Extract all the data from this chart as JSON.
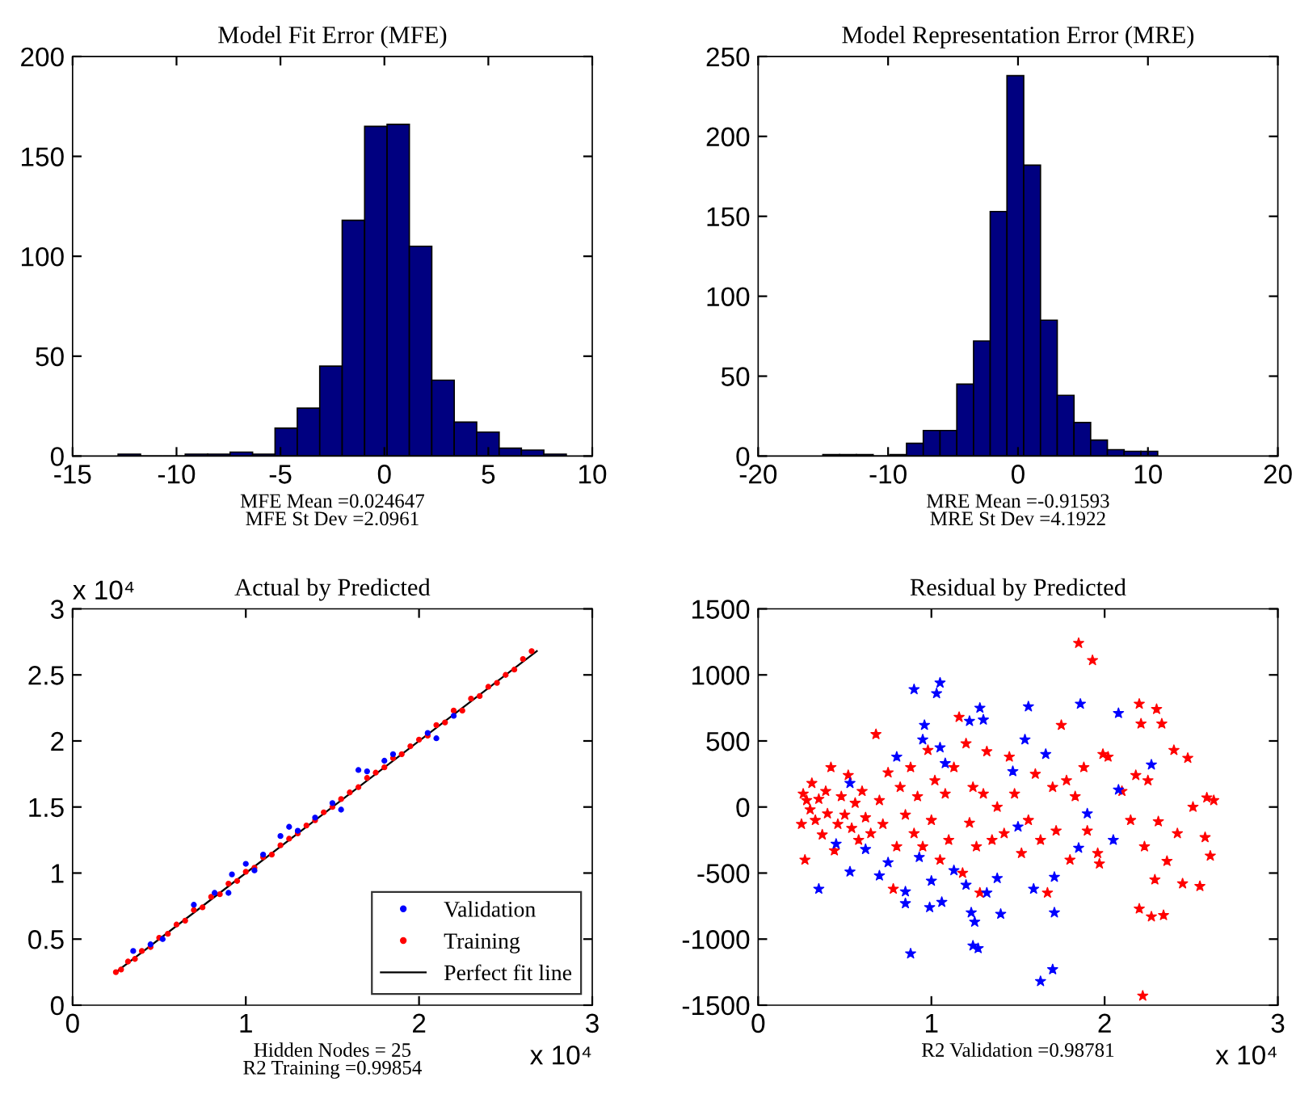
{
  "chart_data": [
    {
      "type": "histogram",
      "title": "Model Fit Error (MFE)",
      "xlabel": "MFE Mean =0.024647\nMFE St Dev =2.0961",
      "bins": [
        -12.81,
        -11.73,
        -10.65,
        -9.58,
        -8.5,
        -7.42,
        -6.34,
        -5.26,
        -4.19,
        -3.11,
        -2.03,
        -0.95,
        0.13,
        1.2,
        2.28,
        3.36,
        4.44,
        5.52,
        6.59,
        7.67,
        8.75
      ],
      "values": [
        1,
        0,
        0,
        1,
        1,
        2,
        1,
        14,
        24,
        45,
        118,
        165,
        166,
        105,
        38,
        17,
        12,
        4,
        3,
        1
      ],
      "color": "#000080",
      "xlim": [
        -15,
        10
      ],
      "xticks": [
        -15,
        -10,
        -5,
        0,
        5,
        10
      ],
      "ylim": [
        0,
        200
      ],
      "yticks": [
        0,
        50,
        100,
        150,
        200
      ],
      "grid": false
    },
    {
      "type": "histogram",
      "title": "Model Representation Error (MRE)",
      "xlabel": "MRE Mean =-0.91593\nMRE St Dev =4.1922",
      "bins": [
        -15.02,
        -13.73,
        -12.44,
        -11.15,
        -9.87,
        -8.58,
        -7.29,
        -6.0,
        -4.71,
        -3.42,
        -2.14,
        -0.85,
        0.44,
        1.73,
        3.02,
        4.31,
        5.59,
        6.88,
        8.17,
        9.46,
        10.75
      ],
      "values": [
        1,
        1,
        1,
        0,
        1,
        8,
        16,
        16,
        45,
        72,
        153,
        238,
        182,
        85,
        38,
        21,
        10,
        4,
        3,
        3
      ],
      "color": "#000080",
      "xlim": [
        -20,
        20
      ],
      "xticks": [
        -20,
        -10,
        0,
        10,
        20
      ],
      "ylim": [
        0,
        250
      ],
      "yticks": [
        0,
        50,
        100,
        150,
        200,
        250
      ],
      "grid": false
    },
    {
      "type": "scatter",
      "title": "Actual by Predicted",
      "xlabel": "Hidden Nodes = 25\nR2 Training =0.99854",
      "annotations": [
        "x 10⁴",
        "x 10⁴"
      ],
      "marker": "circle",
      "legend": "bottom right",
      "grid": false,
      "xlim": [
        0,
        3
      ],
      "xticks": [
        0,
        1,
        2,
        3
      ],
      "ylim": [
        0,
        3
      ],
      "yticks": [
        0,
        0.5,
        1,
        1.5,
        2,
        2.5,
        3
      ],
      "series": [
        {
          "name": "Validation",
          "color": "#0000ff",
          "x": [
            0.35,
            0.45,
            0.52,
            0.7,
            0.82,
            0.9,
            0.92,
            1.0,
            1.05,
            1.1,
            1.2,
            1.25,
            1.3,
            1.4,
            1.5,
            1.55,
            1.65,
            1.7,
            1.8,
            1.85,
            2.05,
            2.1,
            2.2
          ],
          "values": [
            0.41,
            0.46,
            0.5,
            0.76,
            0.85,
            0.85,
            0.99,
            1.07,
            1.02,
            1.14,
            1.28,
            1.35,
            1.32,
            1.42,
            1.53,
            1.48,
            1.78,
            1.77,
            1.85,
            1.9,
            2.06,
            2.02,
            2.19
          ]
        },
        {
          "name": "Training",
          "color": "#ff0000",
          "x": [
            0.25,
            0.28,
            0.32,
            0.36,
            0.4,
            0.45,
            0.5,
            0.55,
            0.6,
            0.65,
            0.7,
            0.75,
            0.8,
            0.85,
            0.9,
            0.95,
            1.0,
            1.05,
            1.1,
            1.15,
            1.2,
            1.25,
            1.3,
            1.35,
            1.4,
            1.45,
            1.5,
            1.55,
            1.6,
            1.65,
            1.7,
            1.75,
            1.8,
            1.85,
            1.9,
            1.95,
            2.0,
            2.05,
            2.1,
            2.15,
            2.2,
            2.25,
            2.3,
            2.35,
            2.4,
            2.45,
            2.5,
            2.55,
            2.6,
            2.65
          ],
          "values": [
            0.25,
            0.27,
            0.33,
            0.35,
            0.41,
            0.44,
            0.51,
            0.54,
            0.61,
            0.64,
            0.72,
            0.74,
            0.82,
            0.84,
            0.92,
            0.94,
            1.01,
            1.04,
            1.12,
            1.14,
            1.21,
            1.26,
            1.3,
            1.36,
            1.4,
            1.46,
            1.5,
            1.56,
            1.61,
            1.65,
            1.72,
            1.76,
            1.8,
            1.87,
            1.9,
            1.96,
            2.01,
            2.04,
            2.12,
            2.14,
            2.23,
            2.23,
            2.32,
            2.34,
            2.41,
            2.44,
            2.5,
            2.54,
            2.62,
            2.68
          ]
        },
        {
          "name": "Perfect fit line",
          "type": "line",
          "color": "#000000",
          "marker": "none",
          "line_style": "solid",
          "x": [
            0.25,
            2.68
          ],
          "values": [
            0.25,
            2.68
          ]
        }
      ]
    },
    {
      "type": "scatter",
      "title": "Residual by Predicted",
      "xlabel": "R2 Validation =0.98781",
      "annotations": [
        "x 10⁴"
      ],
      "marker": "star",
      "grid": false,
      "xlim": [
        0,
        3
      ],
      "xticks": [
        0,
        1,
        2,
        3
      ],
      "ylim": [
        -1500,
        1500
      ],
      "yticks": [
        -1500,
        -1000,
        -500,
        0,
        500,
        1000,
        1500
      ],
      "series": [
        {
          "color": "#0000ff",
          "x": [
            0.35,
            0.45,
            0.53,
            0.53,
            0.62,
            0.7,
            0.75,
            0.8,
            0.85,
            0.85,
            0.88,
            0.9,
            0.93,
            0.95,
            0.96,
            0.99,
            1.0,
            1.03,
            1.05,
            1.05,
            1.06,
            1.08,
            1.13,
            1.2,
            1.22,
            1.23,
            1.24,
            1.25,
            1.27,
            1.28,
            1.3,
            1.32,
            1.38,
            1.4,
            1.47,
            1.5,
            1.54,
            1.56,
            1.59,
            1.63,
            1.66,
            1.7,
            1.71,
            1.71,
            1.85,
            1.86,
            1.9,
            2.05,
            2.08,
            2.08,
            2.27
          ],
          "values": [
            -620,
            -280,
            -490,
            180,
            -320,
            -520,
            -420,
            380,
            -640,
            -730,
            -1110,
            890,
            -380,
            510,
            620,
            -760,
            -560,
            860,
            940,
            450,
            -720,
            330,
            -480,
            -590,
            650,
            -800,
            -1050,
            -870,
            -1070,
            750,
            660,
            -650,
            -540,
            -810,
            270,
            -150,
            510,
            760,
            -620,
            -1320,
            400,
            -1230,
            -530,
            -800,
            -310,
            780,
            -50,
            -250,
            710,
            130,
            320
          ]
        },
        {
          "color": "#ff0000",
          "x": [
            0.25,
            0.26,
            0.27,
            0.28,
            0.3,
            0.31,
            0.33,
            0.35,
            0.37,
            0.39,
            0.4,
            0.42,
            0.44,
            0.46,
            0.48,
            0.5,
            0.52,
            0.54,
            0.56,
            0.58,
            0.6,
            0.62,
            0.65,
            0.68,
            0.7,
            0.72,
            0.75,
            0.78,
            0.8,
            0.82,
            0.85,
            0.88,
            0.9,
            0.92,
            0.95,
            0.98,
            1.0,
            1.02,
            1.05,
            1.08,
            1.1,
            1.13,
            1.16,
            1.18,
            1.2,
            1.22,
            1.24,
            1.26,
            1.28,
            1.3,
            1.32,
            1.35,
            1.38,
            1.42,
            1.45,
            1.48,
            1.52,
            1.56,
            1.6,
            1.63,
            1.67,
            1.7,
            1.72,
            1.75,
            1.78,
            1.8,
            1.83,
            1.85,
            1.88,
            1.9,
            1.93,
            1.96,
            1.97,
            1.99,
            2.02,
            2.1,
            2.15,
            2.18,
            2.2,
            2.2,
            2.21,
            2.22,
            2.23,
            2.25,
            2.27,
            2.29,
            2.3,
            2.31,
            2.33,
            2.34,
            2.36,
            2.4,
            2.42,
            2.45,
            2.48,
            2.51,
            2.55,
            2.58,
            2.59,
            2.61,
            2.63
          ],
          "values": [
            -130,
            100,
            -400,
            50,
            -20,
            180,
            -100,
            60,
            -210,
            120,
            -50,
            300,
            -330,
            -130,
            80,
            -60,
            240,
            -160,
            30,
            -250,
            120,
            -80,
            -200,
            550,
            50,
            -130,
            260,
            -620,
            -300,
            150,
            -60,
            300,
            -200,
            80,
            -300,
            430,
            -100,
            200,
            -400,
            100,
            -250,
            300,
            680,
            -500,
            480,
            -120,
            150,
            -300,
            -650,
            100,
            420,
            -250,
            0,
            -200,
            380,
            100,
            -350,
            -100,
            250,
            -250,
            -650,
            150,
            -180,
            620,
            200,
            -400,
            80,
            1240,
            300,
            -180,
            1110,
            -350,
            -430,
            400,
            380,
            120,
            -100,
            240,
            -770,
            780,
            630,
            -1430,
            -300,
            200,
            -830,
            -550,
            740,
            -110,
            630,
            -820,
            -410,
            430,
            -200,
            -580,
            370,
            0,
            -600,
            -230,
            70,
            -370,
            50
          ]
        }
      ]
    }
  ]
}
